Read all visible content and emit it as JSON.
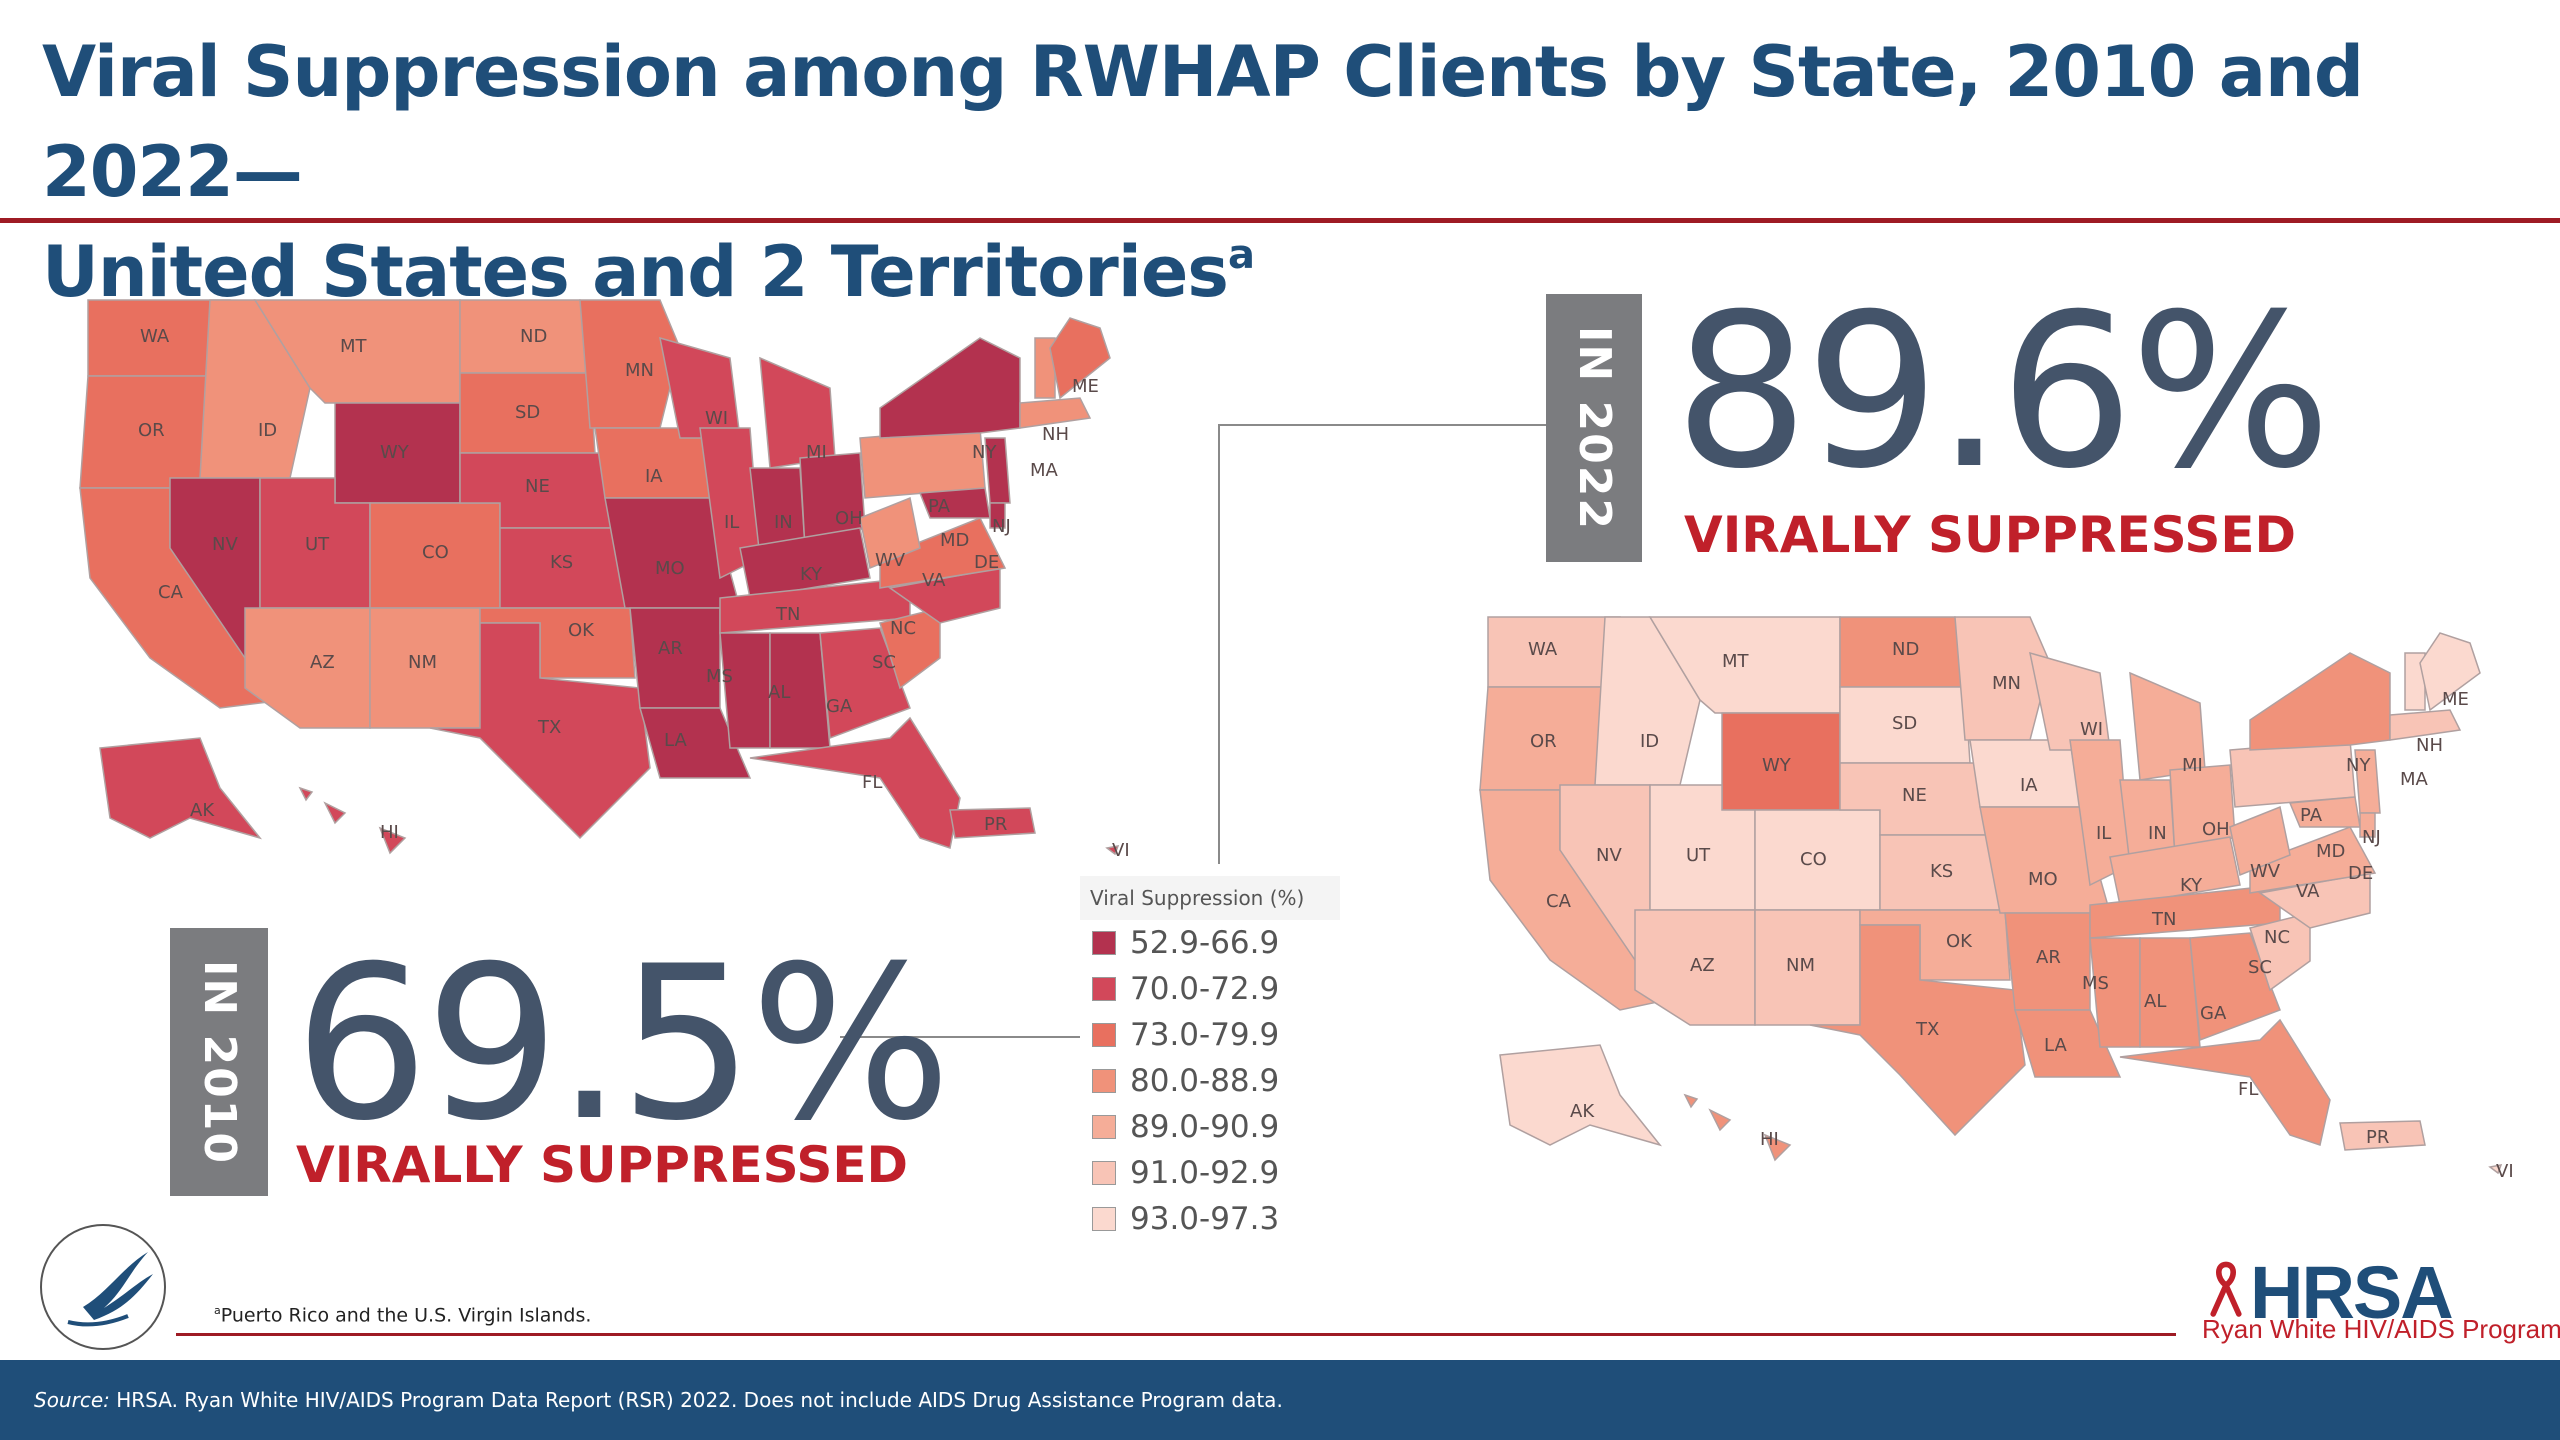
{
  "title": {
    "line1": "Viral Suppression among RWHAP Clients by State, 2010 and 2022—",
    "line2": "United States and 2 Territories",
    "superscript": "a"
  },
  "stat_2022": {
    "year_label": "IN 2022",
    "value": "89.6%",
    "caption": "VIRALLY SUPPRESSED"
  },
  "stat_2010": {
    "year_label": "IN 2010",
    "value": "69.5%",
    "caption": "VIRALLY SUPPRESSED"
  },
  "legend": {
    "title": "Viral Suppression (%)",
    "items": [
      {
        "label": "52.9-66.9",
        "color": "#b3324f"
      },
      {
        "label": "70.0-72.9",
        "color": "#d2485a"
      },
      {
        "label": "73.0-79.9",
        "color": "#e8705f"
      },
      {
        "label": "80.0-88.9",
        "color": "#f0927a"
      },
      {
        "label": "89.0-90.9",
        "color": "#f5ad98"
      },
      {
        "label": "91.0-92.9",
        "color": "#f8c4b6"
      },
      {
        "label": "93.0-97.3",
        "color": "#fbd9cf"
      }
    ]
  },
  "map_2010": {
    "states": [
      "WA",
      "MT",
      "ND",
      "MN",
      "ME",
      "OR",
      "ID",
      "WY",
      "SD",
      "WI",
      "MI",
      "NY",
      "NH",
      "MA",
      "NV",
      "UT",
      "CO",
      "NE",
      "IA",
      "IL",
      "IN",
      "OH",
      "PA",
      "NJ",
      "MD",
      "DE",
      "CA",
      "KS",
      "MO",
      "KY",
      "WV",
      "VA",
      "AZ",
      "NM",
      "OK",
      "AR",
      "TN",
      "NC",
      "SC",
      "TX",
      "MS",
      "AL",
      "GA",
      "LA",
      "FL",
      "AK",
      "HI",
      "PR",
      "VI"
    ]
  },
  "map_2022": {
    "states": [
      "WA",
      "MT",
      "ND",
      "MN",
      "ME",
      "OR",
      "ID",
      "WY",
      "SD",
      "WI",
      "MI",
      "NY",
      "NH",
      "MA",
      "NV",
      "UT",
      "CO",
      "NE",
      "IA",
      "IL",
      "IN",
      "OH",
      "PA",
      "NJ",
      "MD",
      "DE",
      "CA",
      "KS",
      "MO",
      "KY",
      "WV",
      "VA",
      "AZ",
      "NM",
      "OK",
      "AR",
      "TN",
      "NC",
      "SC",
      "TX",
      "MS",
      "AL",
      "GA",
      "LA",
      "FL",
      "AK",
      "HI",
      "PR",
      "VI"
    ]
  },
  "footnote": {
    "marker": "a",
    "text": "Puerto Rico and the U.S. Virgin Islands."
  },
  "logo": {
    "name": "HRSA",
    "subtitle": "Ryan White HIV/AIDS Program"
  },
  "source": {
    "label": "Source:",
    "text": " HRSA. Ryan White HIV/AIDS Program Data Report (RSR) 2022. Does not include AIDS Drug Assistance Program data."
  }
}
